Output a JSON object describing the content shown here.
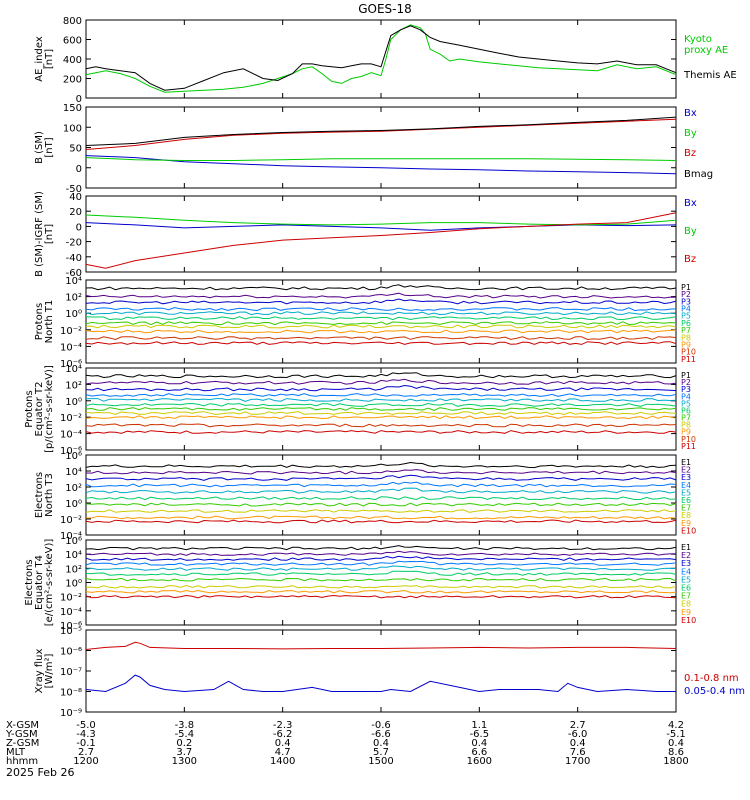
{
  "title": "GOES-18",
  "date": "2025 Feb 26",
  "colors": {
    "black": "#000000",
    "blue": "#0000cc",
    "green": "#00cc00",
    "red": "#cc0000",
    "channels": [
      "#000000",
      "#550088",
      "#0000cc",
      "#0077ff",
      "#00aacc",
      "#00cc66",
      "#33cc00",
      "#cccc00",
      "#ff9900",
      "#cc3300",
      "#cc0000"
    ]
  },
  "chart_data": [
    {
      "type": "line",
      "panel": "ae",
      "ylabel": "AE_index\n[nT]",
      "ylim": [
        0,
        800
      ],
      "yticks": [
        0,
        200,
        400,
        600,
        800
      ],
      "ytick_labels": [
        "0",
        "200",
        "400",
        "600",
        "800"
      ],
      "xlim": [
        1200,
        1800
      ],
      "series": [
        {
          "name": "Kyoto\nproxy AE",
          "color": "#00cc00",
          "x": [
            1200,
            1210,
            1220,
            1235,
            1250,
            1265,
            1280,
            1300,
            1320,
            1340,
            1360,
            1380,
            1395,
            1410,
            1420,
            1430,
            1440,
            1450,
            1460,
            1470,
            1480,
            1490,
            1500,
            1505,
            1510,
            1520,
            1530,
            1540,
            1545,
            1550,
            1560,
            1570,
            1580,
            1600,
            1620,
            1640,
            1660,
            1680,
            1700,
            1720,
            1740,
            1760,
            1780,
            1800
          ],
          "y": [
            240,
            260,
            280,
            250,
            200,
            120,
            60,
            70,
            80,
            90,
            110,
            150,
            200,
            250,
            300,
            320,
            250,
            170,
            150,
            200,
            220,
            260,
            230,
            400,
            600,
            700,
            750,
            720,
            660,
            500,
            450,
            380,
            400,
            370,
            350,
            330,
            310,
            300,
            290,
            280,
            340,
            300,
            320,
            240
          ]
        },
        {
          "name": "Themis AE",
          "color": "#000000",
          "x": [
            1200,
            1210,
            1220,
            1235,
            1250,
            1265,
            1280,
            1300,
            1320,
            1340,
            1360,
            1380,
            1395,
            1410,
            1420,
            1430,
            1440,
            1450,
            1460,
            1470,
            1480,
            1490,
            1500,
            1505,
            1510,
            1520,
            1530,
            1540,
            1545,
            1550,
            1560,
            1570,
            1580,
            1600,
            1620,
            1640,
            1660,
            1680,
            1700,
            1720,
            1740,
            1760,
            1780,
            1800
          ],
          "y": [
            300,
            320,
            300,
            280,
            260,
            150,
            80,
            100,
            180,
            260,
            300,
            200,
            180,
            250,
            350,
            350,
            330,
            320,
            310,
            330,
            350,
            350,
            320,
            480,
            640,
            700,
            740,
            700,
            660,
            620,
            580,
            560,
            540,
            500,
            460,
            420,
            400,
            380,
            360,
            350,
            380,
            340,
            340,
            260
          ]
        }
      ]
    },
    {
      "type": "line",
      "panel": "b",
      "ylabel": "B (SM)\n[nT]",
      "ylim": [
        -50,
        150
      ],
      "yticks": [
        -50,
        0,
        50,
        100,
        150
      ],
      "ytick_labels": [
        "-50",
        "0",
        "50",
        "100",
        "150"
      ],
      "xlim": [
        1200,
        1800
      ],
      "series": [
        {
          "name": "Bx",
          "color": "#0000cc",
          "x": [
            1200,
            1250,
            1300,
            1350,
            1400,
            1450,
            1500,
            1550,
            1600,
            1650,
            1700,
            1750,
            1800
          ],
          "y": [
            30,
            25,
            15,
            10,
            5,
            2,
            0,
            -3,
            -5,
            -8,
            -10,
            -12,
            -15
          ]
        },
        {
          "name": "By",
          "color": "#00cc00",
          "x": [
            1200,
            1250,
            1300,
            1350,
            1400,
            1450,
            1500,
            1550,
            1600,
            1650,
            1700,
            1750,
            1800
          ],
          "y": [
            25,
            20,
            18,
            18,
            20,
            22,
            22,
            22,
            22,
            22,
            21,
            20,
            18
          ]
        },
        {
          "name": "Bz",
          "color": "#cc0000",
          "x": [
            1200,
            1250,
            1300,
            1350,
            1400,
            1450,
            1500,
            1550,
            1600,
            1650,
            1700,
            1750,
            1800
          ],
          "y": [
            45,
            55,
            70,
            80,
            85,
            88,
            90,
            95,
            100,
            105,
            110,
            115,
            120
          ]
        },
        {
          "name": "Bmag",
          "color": "#000000",
          "x": [
            1200,
            1250,
            1300,
            1350,
            1400,
            1450,
            1500,
            1550,
            1600,
            1650,
            1700,
            1750,
            1800
          ],
          "y": [
            55,
            60,
            75,
            82,
            87,
            90,
            92,
            96,
            102,
            106,
            112,
            117,
            125
          ]
        }
      ]
    },
    {
      "type": "line",
      "panel": "db",
      "ylabel": "B (SM)-IGRF (SM)\n[nT]",
      "ylim": [
        -60,
        40
      ],
      "yticks": [
        -60,
        -40,
        -20,
        0,
        20,
        40
      ],
      "ytick_labels": [
        "-60",
        "-40",
        "-20",
        "0",
        "20",
        "40"
      ],
      "xlim": [
        1200,
        1800
      ],
      "series": [
        {
          "name": "Bx",
          "color": "#0000cc",
          "x": [
            1200,
            1250,
            1300,
            1350,
            1400,
            1450,
            1500,
            1550,
            1600,
            1650,
            1700,
            1750,
            1800
          ],
          "y": [
            5,
            2,
            -2,
            0,
            2,
            0,
            -2,
            -5,
            -2,
            0,
            2,
            1,
            2
          ]
        },
        {
          "name": "By",
          "color": "#00cc00",
          "x": [
            1200,
            1250,
            1300,
            1350,
            1400,
            1450,
            1500,
            1550,
            1600,
            1650,
            1700,
            1750,
            1800
          ],
          "y": [
            15,
            12,
            8,
            5,
            3,
            2,
            3,
            5,
            5,
            3,
            2,
            3,
            8
          ]
        },
        {
          "name": "Bz",
          "color": "#cc0000",
          "x": [
            1200,
            1220,
            1250,
            1300,
            1350,
            1400,
            1450,
            1500,
            1550,
            1600,
            1650,
            1700,
            1750,
            1800
          ],
          "y": [
            -50,
            -55,
            -45,
            -35,
            -25,
            -18,
            -15,
            -12,
            -8,
            -3,
            0,
            3,
            5,
            18
          ]
        }
      ]
    },
    {
      "type": "line",
      "panel": "p_north",
      "log": true,
      "ylabel": "Protons\nNorth T1",
      "ylim": [
        -6,
        4
      ],
      "yticks": [
        -6,
        -4,
        -2,
        0,
        2,
        4
      ],
      "ytick_labels": [
        "10⁻⁶",
        "10⁻⁴",
        "10⁻²",
        "10⁰",
        "10²",
        "10⁴"
      ],
      "xlim": [
        1200,
        1800
      ],
      "series": [
        {
          "name": "P1",
          "color": "#000000",
          "level": 3.0
        },
        {
          "name": "P2",
          "color": "#550088",
          "level": 2.0
        },
        {
          "name": "P3",
          "color": "#0000cc",
          "level": 1.3
        },
        {
          "name": "P4",
          "color": "#0077ff",
          "level": 0.5
        },
        {
          "name": "P5",
          "color": "#00aacc",
          "level": 0.0
        },
        {
          "name": "P6",
          "color": "#00cc66",
          "level": -0.6
        },
        {
          "name": "P7",
          "color": "#33cc00",
          "level": -1.2
        },
        {
          "name": "P8",
          "color": "#cccc00",
          "level": -1.6
        },
        {
          "name": "P9",
          "color": "#ff9900",
          "level": -2.2
        },
        {
          "name": "P10",
          "color": "#cc3300",
          "level": -3.0
        },
        {
          "name": "P11",
          "color": "#cc0000",
          "level": -3.6
        }
      ]
    },
    {
      "type": "line",
      "panel": "p_equator",
      "log": true,
      "ylabel": "Protons\nEquator T2\n[p/(cm²-s-sr-keV)]",
      "ylim": [
        -6,
        4
      ],
      "yticks": [
        -6,
        -4,
        -2,
        0,
        2,
        4
      ],
      "ytick_labels": [
        "10⁻⁶",
        "10⁻⁴",
        "10⁻²",
        "10⁰",
        "10²",
        "10⁴"
      ],
      "xlim": [
        1200,
        1800
      ],
      "series": [
        {
          "name": "P1",
          "color": "#000000",
          "level": 3.0
        },
        {
          "name": "P2",
          "color": "#550088",
          "level": 2.2
        },
        {
          "name": "P3",
          "color": "#0000cc",
          "level": 1.4
        },
        {
          "name": "P4",
          "color": "#0077ff",
          "level": 0.7
        },
        {
          "name": "P5",
          "color": "#00aacc",
          "level": 0.1
        },
        {
          "name": "P6",
          "color": "#00cc66",
          "level": -0.5
        },
        {
          "name": "P7",
          "color": "#33cc00",
          "level": -1.0
        },
        {
          "name": "P8",
          "color": "#cccc00",
          "level": -1.5
        },
        {
          "name": "P9",
          "color": "#ff9900",
          "level": -2.0
        },
        {
          "name": "P10",
          "color": "#cc3300",
          "level": -3.0
        },
        {
          "name": "P11",
          "color": "#cc0000",
          "level": -3.8
        }
      ]
    },
    {
      "type": "line",
      "panel": "e_north",
      "log": true,
      "ylabel": "Electrons\nNorth T3",
      "ylim": [
        -4,
        6
      ],
      "yticks": [
        -4,
        -2,
        0,
        2,
        4,
        6
      ],
      "ytick_labels": [
        "10⁻⁴",
        "10⁻²",
        "10⁰",
        "10²",
        "10⁴",
        "10⁶"
      ],
      "xlim": [
        1200,
        1800
      ],
      "series": [
        {
          "name": "E1",
          "color": "#000000",
          "level": 4.6
        },
        {
          "name": "E2",
          "color": "#550088",
          "level": 3.8
        },
        {
          "name": "E3",
          "color": "#0000cc",
          "level": 3.0
        },
        {
          "name": "E4",
          "color": "#0077ff",
          "level": 2.2
        },
        {
          "name": "E5",
          "color": "#00aacc",
          "level": 1.4
        },
        {
          "name": "E6",
          "color": "#00cc66",
          "level": 0.6
        },
        {
          "name": "E7",
          "color": "#33cc00",
          "level": -0.2
        },
        {
          "name": "E8",
          "color": "#cccc00",
          "level": -1.0
        },
        {
          "name": "E9",
          "color": "#ff9900",
          "level": -1.8
        },
        {
          "name": "E10",
          "color": "#cc0000",
          "level": -2.3
        }
      ]
    },
    {
      "type": "line",
      "panel": "e_equator",
      "log": true,
      "ylabel": "Electrons\nEquator T4\n[e/(cm²-s-sr-keV)]",
      "ylim": [
        -6,
        6
      ],
      "yticks": [
        -6,
        -4,
        -2,
        0,
        2,
        4,
        6
      ],
      "ytick_labels": [
        "10⁻⁶",
        "10⁻⁴",
        "10⁻²",
        "10⁰",
        "10²",
        "10⁴",
        "10⁶"
      ],
      "xlim": [
        1200,
        1800
      ],
      "series": [
        {
          "name": "E1",
          "color": "#000000",
          "level": 4.8
        },
        {
          "name": "E2",
          "color": "#550088",
          "level": 4.0
        },
        {
          "name": "E3",
          "color": "#0000cc",
          "level": 3.3
        },
        {
          "name": "E4",
          "color": "#0077ff",
          "level": 2.6
        },
        {
          "name": "E5",
          "color": "#00aacc",
          "level": 1.9
        },
        {
          "name": "E6",
          "color": "#00cc66",
          "level": 1.2
        },
        {
          "name": "E7",
          "color": "#33cc00",
          "level": 0.4
        },
        {
          "name": "E8",
          "color": "#cccc00",
          "level": -0.6
        },
        {
          "name": "E9",
          "color": "#ff9900",
          "level": -1.3
        },
        {
          "name": "E10",
          "color": "#cc0000",
          "level": -2.0
        }
      ]
    },
    {
      "type": "line",
      "panel": "xray",
      "log": true,
      "ylabel": "Xray flux\n[W/m²]",
      "ylim": [
        -9,
        -5
      ],
      "yticks": [
        -9,
        -8,
        -7,
        -6,
        -5
      ],
      "ytick_labels": [
        "10⁻⁹",
        "10⁻⁸",
        "10⁻⁷",
        "10⁻⁶",
        "10⁻⁵"
      ],
      "xlim": [
        1200,
        1800
      ],
      "series": [
        {
          "name": "0.1-0.8 nm",
          "color": "#cc0000",
          "x": [
            1200,
            1220,
            1240,
            1250,
            1255,
            1265,
            1300,
            1350,
            1400,
            1450,
            1500,
            1550,
            1600,
            1650,
            1700,
            1750,
            1800
          ],
          "y": [
            -5.95,
            -5.85,
            -5.8,
            -5.6,
            -5.65,
            -5.85,
            -5.9,
            -5.9,
            -5.92,
            -5.9,
            -5.9,
            -5.88,
            -5.85,
            -5.88,
            -5.85,
            -5.85,
            -5.9
          ]
        },
        {
          "name": "0.05-0.4 nm",
          "color": "#0000cc",
          "x": [
            1200,
            1220,
            1240,
            1250,
            1255,
            1265,
            1280,
            1300,
            1330,
            1345,
            1360,
            1380,
            1400,
            1430,
            1450,
            1470,
            1500,
            1510,
            1530,
            1550,
            1580,
            1600,
            1620,
            1640,
            1660,
            1680,
            1690,
            1700,
            1720,
            1750,
            1780,
            1800
          ],
          "y": [
            -7.9,
            -8.0,
            -7.6,
            -7.2,
            -7.3,
            -7.7,
            -7.9,
            -8.0,
            -7.9,
            -7.5,
            -7.9,
            -8.0,
            -8.0,
            -7.8,
            -8.0,
            -8.0,
            -8.0,
            -7.9,
            -8.0,
            -7.5,
            -7.8,
            -8.0,
            -7.9,
            -7.9,
            -7.9,
            -8.0,
            -7.6,
            -7.8,
            -8.0,
            -7.9,
            -8.0,
            -8.0
          ]
        }
      ]
    }
  ],
  "xaxis": {
    "rows": [
      {
        "label": "X-GSM",
        "values": [
          "-5.0",
          "-3.8",
          "-2.3",
          "-0.6",
          "1.1",
          "2.7",
          "4.2"
        ]
      },
      {
        "label": "Y-GSM",
        "values": [
          "-4.3",
          "-5.4",
          "-6.2",
          "-6.6",
          "-6.5",
          "-6.0",
          "-5.1"
        ]
      },
      {
        "label": "Z-GSM",
        "values": [
          "-0.1",
          "0.2",
          "0.4",
          "0.4",
          "0.4",
          "0.4",
          "0.4"
        ]
      },
      {
        "label": "MLT",
        "values": [
          "2.7",
          "3.7",
          "4.7",
          "5.7",
          "6.6",
          "7.6",
          "8.6"
        ]
      },
      {
        "label": "hhmm",
        "values": [
          "1200",
          "1300",
          "1400",
          "1500",
          "1600",
          "1700",
          "1800"
        ]
      }
    ]
  }
}
